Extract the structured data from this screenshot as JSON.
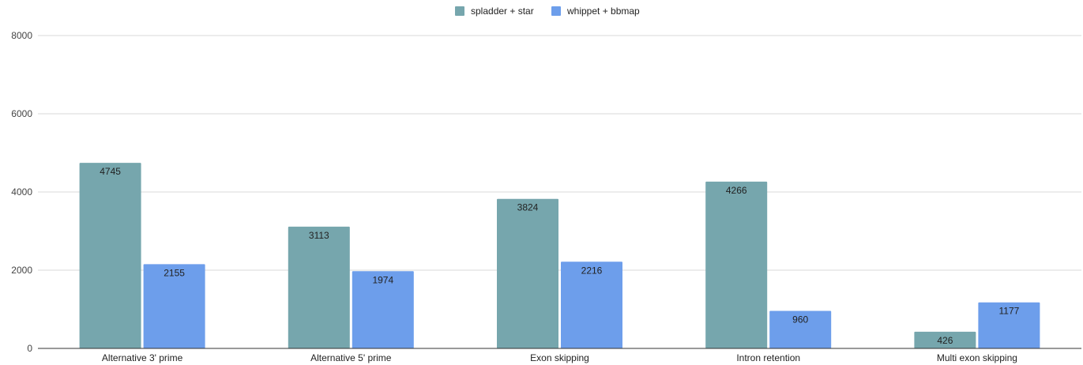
{
  "chart_data": {
    "type": "bar",
    "categories": [
      "Alternative 3' prime",
      "Alternative 5' prime",
      "Exon skipping",
      "Intron retention",
      "Multi exon skipping"
    ],
    "series": [
      {
        "name": "spladder + star",
        "color": "#76a6ad",
        "values": [
          4745,
          3113,
          3824,
          4266,
          426
        ]
      },
      {
        "name": "whippet + bbmap",
        "color": "#6d9eeb",
        "values": [
          2155,
          1974,
          2216,
          960,
          1177
        ]
      }
    ],
    "yticks": [
      0,
      2000,
      4000,
      6000,
      8000
    ],
    "ylim": [
      0,
      8000
    ],
    "grid": true,
    "legend_position": "top-center",
    "data_labels": true
  }
}
